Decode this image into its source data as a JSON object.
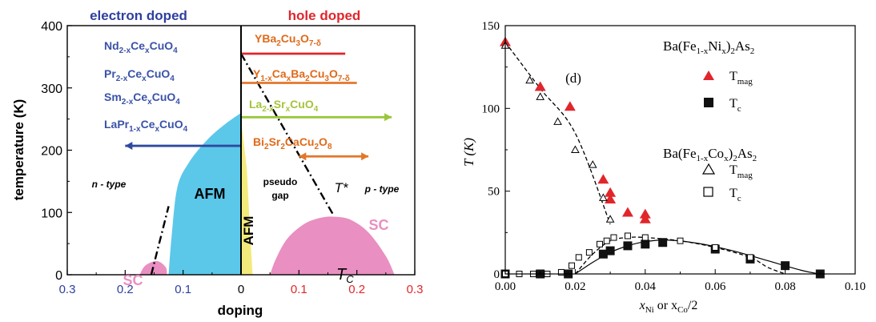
{
  "colors": {
    "electron": "#2e3f9e",
    "hole": "#e0262b",
    "afm": "#5bc8ea",
    "afm_yellow": "#f3ea7c",
    "sc": "#e98fc1",
    "red_line": "#e0262b",
    "orange": "#e2772b",
    "green": "#9ac63d",
    "blue_arrow": "#2e4a9e",
    "text_blue": "#3a52a8",
    "text_orange": "#e06a1a",
    "text_green": "#a4c43a"
  },
  "chart_data": [
    {
      "type": "area",
      "header_left": "electron doped",
      "header_right": "hole doped",
      "xlabel": "doping",
      "ylabel": "temperature (K)",
      "xlim": [
        -0.3,
        0.3
      ],
      "ylim": [
        0,
        400
      ],
      "xticks": [
        {
          "v": -0.3,
          "label": "0.3",
          "side": "electron"
        },
        {
          "v": -0.2,
          "label": "0.2",
          "side": "electron"
        },
        {
          "v": -0.1,
          "label": "0.1",
          "side": "electron"
        },
        {
          "v": 0,
          "label": "0",
          "side": "zero"
        },
        {
          "v": 0.1,
          "label": "0.1",
          "side": "hole"
        },
        {
          "v": 0.2,
          "label": "0.2",
          "side": "hole"
        },
        {
          "v": 0.3,
          "label": "0.3",
          "side": "hole"
        }
      ],
      "yticks": [
        0,
        100,
        200,
        300,
        400
      ],
      "regions": {
        "afm_electron": [
          [
            -0.125,
            0
          ],
          [
            -0.12,
            60
          ],
          [
            -0.11,
            140
          ],
          [
            -0.09,
            180
          ],
          [
            -0.06,
            215
          ],
          [
            -0.03,
            240
          ],
          [
            0,
            260
          ],
          [
            0,
            0
          ]
        ],
        "afm_hole": [
          [
            0,
            0
          ],
          [
            0,
            250
          ],
          [
            0.01,
            170
          ],
          [
            0.015,
            80
          ],
          [
            0.02,
            0
          ]
        ],
        "sc_electron": [
          [
            -0.175,
            0
          ],
          [
            -0.165,
            15
          ],
          [
            -0.145,
            22
          ],
          [
            -0.13,
            12
          ],
          [
            -0.128,
            0
          ]
        ],
        "sc_hole": [
          [
            0.05,
            0
          ],
          [
            0.06,
            25
          ],
          [
            0.08,
            58
          ],
          [
            0.11,
            82
          ],
          [
            0.14,
            92
          ],
          [
            0.165,
            93
          ],
          [
            0.19,
            88
          ],
          [
            0.22,
            68
          ],
          [
            0.25,
            30
          ],
          [
            0.265,
            0
          ]
        ]
      },
      "dashdot_lines": [
        {
          "name": "T*",
          "points": [
            [
              0,
              355
            ],
            [
              0.16,
              95
            ]
          ]
        },
        {
          "name": "electron-sc-boundary",
          "points": [
            [
              -0.155,
              0
            ],
            [
              -0.125,
              110
            ]
          ]
        }
      ],
      "region_labels": {
        "afm": "AFM",
        "afm_vertical": "AFM",
        "sc_left": "SC",
        "sc_right": "SC",
        "tc": "T",
        "tc_sub": "C",
        "pseudo_1": "pseudo",
        "pseudo_2": "gap",
        "tstar": "T*",
        "n_type": "n - type",
        "p_type": "p - type"
      },
      "materials": [
        {
          "label": "Nd",
          "sub": "2-x",
          "label2": "Ce",
          "sub2": "x",
          "label3": "CuO",
          "sub3": "4",
          "side": "electron"
        },
        {
          "label": "Pr",
          "sub": "2-x",
          "label2": "Ce",
          "sub2": "x",
          "label3": "CuO",
          "sub3": "4",
          "side": "electron"
        },
        {
          "label": "Sm",
          "sub": "2-x",
          "label2": "Ce",
          "sub2": "x",
          "label3": "CuO",
          "sub3": "4",
          "side": "electron"
        },
        {
          "label": "LaPr",
          "sub": "1-x",
          "label2": "Ce",
          "sub2": "x",
          "label3": "CuO",
          "sub3": "4",
          "side": "electron"
        },
        {
          "label": "YBa",
          "sub": "2",
          "label2": "Cu",
          "sub2": "3",
          "label3": "O",
          "sub3": "7-δ",
          "side": "hole"
        },
        {
          "label": "Y",
          "sub": "1-x",
          "label2": "Ca",
          "sub2": "x",
          "label3": "Ba",
          "sub3": "2",
          "label4": "Cu",
          "sub4": "3",
          "label5": "O",
          "sub5": "7-δ",
          "side": "hole"
        },
        {
          "label": "La",
          "sub": "2-x",
          "label2": "Sr",
          "sub2": "x",
          "label3": "CuO",
          "sub3": "4",
          "side": "hole"
        },
        {
          "label": "Bi",
          "sub": "2",
          "label2": "Sr",
          "sub2": "2",
          "label3": "CaCu",
          "sub3": "2",
          "label4": "O",
          "sub4": "8",
          "side": "hole"
        }
      ],
      "bars": [
        {
          "material": "YBa2Cu3O7-δ",
          "x_from": 0,
          "x_to": 0.18,
          "y": 355,
          "color": "red"
        },
        {
          "material": "Y1-xCaxBa2Cu3O7-δ",
          "x_from": 0,
          "x_to": 0.2,
          "y": 308,
          "color": "orange"
        },
        {
          "material": "La2-xSrxCuO4",
          "x_from": 0,
          "x_to": 0.26,
          "y": 253,
          "color": "green",
          "arrow": "right"
        },
        {
          "material": "LaPr1-xCexCuO4",
          "x_from": 0,
          "x_to": -0.2,
          "y": 207,
          "color": "blue",
          "arrow": "left"
        },
        {
          "material": "Bi2Sr2CaCu2O8",
          "x_from": 0.1,
          "x_to": 0.22,
          "y": 190,
          "color": "orange",
          "arrow": "both"
        }
      ]
    },
    {
      "type": "scatter",
      "xlabel_parts": [
        "x",
        "Ni",
        " or x",
        "Co",
        "/2"
      ],
      "ylabel": "T (K)",
      "xlim": [
        0,
        0.1
      ],
      "ylim": [
        0,
        150
      ],
      "xticks": [
        "0.00",
        "0.02",
        "0.04",
        "0.06",
        "0.08",
        "0.10"
      ],
      "yticks": [
        "0",
        "50",
        "100",
        "150"
      ],
      "panel_label": "(d)",
      "legend": {
        "group1": {
          "a": "Ba(Fe",
          "b": "1-x",
          "c": "Ni",
          "d": "x",
          "e": ")",
          "f": "2",
          "g": "As",
          "h": "2"
        },
        "group2": {
          "a": "Ba(Fe",
          "b": "1-x",
          "c": "Co",
          "d": "x",
          "e": ")",
          "f": "2",
          "g": "As",
          "h": "2"
        },
        "tmag": "T",
        "tmag_sub": "mag",
        "tc": "T",
        "tc_sub": "c"
      },
      "series": [
        {
          "name": "Tmag",
          "group": "Ba(Fe1-xNix)2As2",
          "marker": "filled-triangle",
          "x": [
            0.0,
            0.01,
            0.0185,
            0.028,
            0.03,
            0.03,
            0.035,
            0.04,
            0.04
          ],
          "y": [
            140,
            113,
            101,
            57,
            49,
            45,
            37,
            36,
            33
          ]
        },
        {
          "name": "Tc",
          "group": "Ba(Fe1-xNix)2As2",
          "marker": "filled-square",
          "x": [
            0.0,
            0.01,
            0.018,
            0.028,
            0.03,
            0.035,
            0.04,
            0.045,
            0.06,
            0.07,
            0.08,
            0.09
          ],
          "y": [
            0,
            0,
            0,
            12,
            14,
            17,
            18,
            19,
            15,
            9,
            5,
            0
          ]
        },
        {
          "name": "Tmag",
          "group": "Ba(Fe1-xCox)2As2",
          "marker": "open-triangle",
          "x": [
            0.0,
            0.007,
            0.01,
            0.015,
            0.02,
            0.025,
            0.028,
            0.03
          ],
          "y": [
            138,
            117,
            107,
            92,
            75,
            66,
            46,
            33
          ]
        },
        {
          "name": "Tc",
          "group": "Ba(Fe1-xCox)2As2",
          "marker": "open-square",
          "x": [
            0.0,
            0.004,
            0.008,
            0.012,
            0.016,
            0.019,
            0.021,
            0.024,
            0.027,
            0.029,
            0.031,
            0.035,
            0.04,
            0.05,
            0.06,
            0.07
          ],
          "y": [
            0,
            0,
            0,
            0,
            1,
            5,
            10,
            13,
            18,
            20,
            22,
            23,
            22,
            20,
            16,
            10
          ]
        }
      ],
      "curves": {
        "tmag_dashed": [
          [
            0.0,
            140
          ],
          [
            0.01,
            112
          ],
          [
            0.02,
            85
          ],
          [
            0.03,
            30
          ]
        ],
        "tc_solid": [
          [
            0.02,
            0
          ],
          [
            0.025,
            7
          ],
          [
            0.03,
            13
          ],
          [
            0.035,
            17
          ],
          [
            0.04,
            19.5
          ],
          [
            0.046,
            20.5
          ],
          [
            0.055,
            18.5
          ],
          [
            0.065,
            14
          ],
          [
            0.075,
            8
          ],
          [
            0.085,
            2
          ],
          [
            0.09,
            0
          ]
        ],
        "tc_dashed": [
          [
            0.02,
            0
          ],
          [
            0.025,
            12
          ],
          [
            0.03,
            20
          ],
          [
            0.035,
            22
          ],
          [
            0.04,
            22
          ],
          [
            0.05,
            20
          ],
          [
            0.06,
            16
          ],
          [
            0.07,
            10
          ],
          [
            0.075,
            4
          ],
          [
            0.08,
            0
          ]
        ]
      }
    }
  ]
}
